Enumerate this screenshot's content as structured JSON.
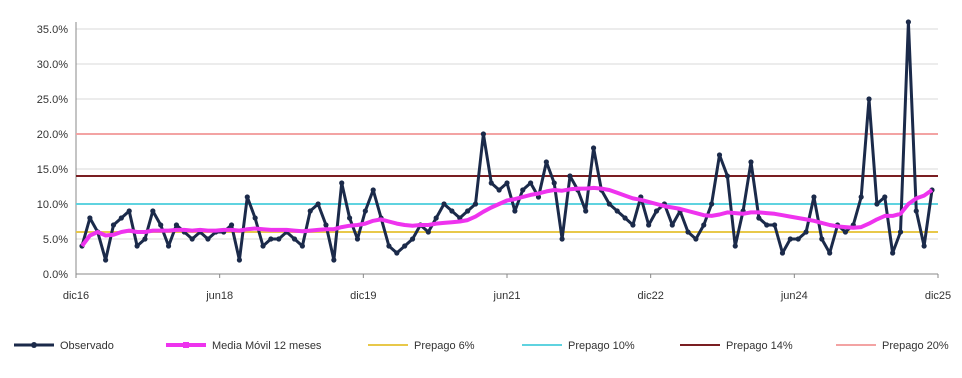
{
  "chart_data": {
    "type": "line",
    "title": "",
    "xlabel": "",
    "ylabel": "",
    "ylim": [
      0,
      36
    ],
    "y_ticks": [
      "0.0%",
      "5.0%",
      "10.0%",
      "15.0%",
      "20.0%",
      "25.0%",
      "30.0%",
      "35.0%"
    ],
    "x_tick_labels": [
      "dic16",
      "jun18",
      "dic19",
      "jun21",
      "dic22",
      "jun24",
      "dic25"
    ],
    "grid": "horizontal",
    "legend_position": "bottom",
    "colors": {
      "observado": "#1b2a4a",
      "media": "#ee33ee",
      "prepago_6": "#e8c84a",
      "prepago_10": "#5fd3e0",
      "prepago_14": "#7a1e22",
      "prepago_20": "#f3a3a3"
    },
    "series": [
      {
        "name": "Observado",
        "kind": "line-markers",
        "values": [
          4,
          8,
          6,
          2,
          7,
          8,
          9,
          4,
          5,
          9,
          7,
          4,
          7,
          6,
          5,
          6,
          5,
          6,
          6,
          7,
          2,
          11,
          8,
          4,
          5,
          5,
          6,
          5,
          4,
          9,
          10,
          7,
          2,
          13,
          8,
          5,
          9,
          12,
          8,
          4,
          3,
          4,
          5,
          7,
          6,
          8,
          10,
          9,
          8,
          9,
          10,
          20,
          13,
          12,
          13,
          9,
          12,
          13,
          11,
          16,
          13,
          5,
          14,
          12,
          9,
          18,
          12,
          10,
          9,
          8,
          7,
          11,
          7,
          9,
          10,
          7,
          9,
          6,
          5,
          7,
          10,
          17,
          14,
          4,
          9,
          16,
          8,
          7,
          7,
          3,
          5,
          5,
          6,
          11,
          5,
          3,
          7,
          6,
          7,
          11,
          25,
          10,
          11,
          3,
          6,
          36,
          9,
          4,
          12
        ]
      },
      {
        "name": "Media Móvil 12 meses",
        "kind": "thick-line",
        "values": [
          4,
          5.5,
          6,
          5.5,
          5.6,
          6,
          6.2,
          6,
          6,
          6.2,
          6.2,
          6.2,
          6.3,
          6.3,
          6.2,
          6.3,
          6.2,
          6.2,
          6.3,
          6.3,
          6.2,
          6.4,
          6.5,
          6.4,
          6.3,
          6.3,
          6.3,
          6.2,
          6.1,
          6.2,
          6.3,
          6.4,
          6.4,
          6.7,
          6.9,
          7,
          7.2,
          7.6,
          7.8,
          7.5,
          7.2,
          7,
          6.9,
          7,
          7,
          7.2,
          7.3,
          7.4,
          7.5,
          7.7,
          8.2,
          8.9,
          9.5,
          10,
          10.5,
          10.7,
          11,
          11.3,
          11.5,
          11.8,
          12,
          11.9,
          12.1,
          12.2,
          12.2,
          12.3,
          12.2,
          12,
          11.6,
          11.2,
          10.8,
          10.6,
          10.3,
          10,
          9.7,
          9.5,
          9.3,
          9,
          8.7,
          8.4,
          8.3,
          8.5,
          8.8,
          8.7,
          8.6,
          8.8,
          8.8,
          8.7,
          8.6,
          8.4,
          8.2,
          8,
          7.8,
          7.6,
          7.3,
          7,
          6.8,
          6.7,
          6.6,
          6.7,
          7.2,
          7.8,
          8.3,
          8.3,
          8.6,
          10,
          10.8,
          11.2,
          12
        ]
      },
      {
        "name": "Prepago 6%",
        "kind": "hline",
        "value": 6
      },
      {
        "name": "Prepago 10%",
        "kind": "hline",
        "value": 10
      },
      {
        "name": "Prepago 14%",
        "kind": "hline",
        "value": 14
      },
      {
        "name": "Prepago 20%",
        "kind": "hline",
        "value": 20
      }
    ]
  }
}
